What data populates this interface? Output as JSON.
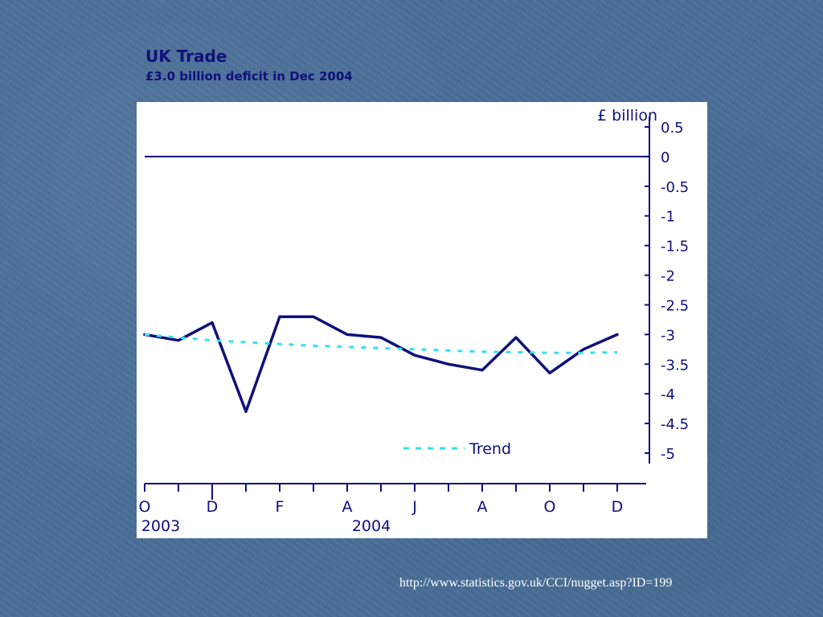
{
  "slide": {
    "title": "UK Trade",
    "subtitle": "£3.0 billion deficit in Dec 2004",
    "source_url": "http://www.statistics.gov.uk/CCI/nugget.asp?ID=199"
  },
  "chart_data": {
    "type": "line",
    "unit_label": "£ billion",
    "ylim": [
      -5.0,
      0.5
    ],
    "y_ticks": [
      "0.5",
      "0",
      "-0.5",
      "-1",
      "-1.5",
      "-2",
      "-2.5",
      "-3",
      "-3.5",
      "-4",
      "-4.5",
      "-5"
    ],
    "x": [
      "Oct 2003",
      "Nov 2003",
      "Dec 2003",
      "Jan 2004",
      "Feb 2004",
      "Mar 2004",
      "Apr 2004",
      "May 2004",
      "Jun 2004",
      "Jul 2004",
      "Aug 2004",
      "Sep 2004",
      "Oct 2004",
      "Nov 2004",
      "Dec 2004"
    ],
    "x_tick_labels": [
      "O",
      "D",
      "F",
      "A",
      "J",
      "A",
      "O",
      "D"
    ],
    "year_labels": [
      "2003",
      "2004"
    ],
    "series": [
      {
        "name": "",
        "style": "solid",
        "color": "#10107a",
        "values": [
          -3.0,
          -3.1,
          -2.8,
          -4.3,
          -2.7,
          -2.7,
          -3.0,
          -3.05,
          -3.35,
          -3.5,
          -3.6,
          -3.05,
          -3.65,
          -3.25,
          -3.0
        ]
      },
      {
        "name": "Trend",
        "style": "dashed",
        "color": "#33e0f0",
        "values": [
          -3.0,
          -3.05,
          -3.1,
          -3.13,
          -3.16,
          -3.19,
          -3.21,
          -3.23,
          -3.25,
          -3.27,
          -3.29,
          -3.3,
          -3.31,
          -3.31,
          -3.3
        ]
      }
    ],
    "reference_line": 0,
    "legend_placement": "bottom-center",
    "grid": false
  }
}
